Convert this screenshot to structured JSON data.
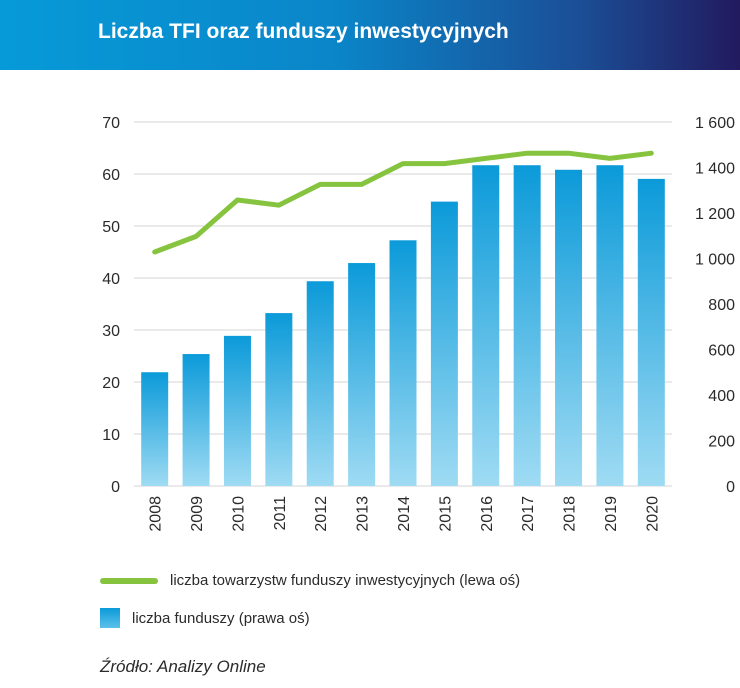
{
  "header": {
    "title": "Liczba TFI oraz funduszy inwestycyjnych"
  },
  "chart_data": {
    "type": "bar",
    "categories": [
      "2008",
      "2009",
      "2010",
      "2011",
      "2012",
      "2013",
      "2014",
      "2015",
      "2016",
      "2017",
      "2018",
      "2019",
      "2020"
    ],
    "series": [
      {
        "name": "liczba towarzystw funduszy inwestycyjnych (lewa oś)",
        "type": "line",
        "axis": "left",
        "values": [
          45,
          48,
          55,
          54,
          58,
          58,
          62,
          62,
          63,
          64,
          64,
          63,
          64
        ],
        "color": "#86c440"
      },
      {
        "name": "liczba funduszy (prawa oś)",
        "type": "bar",
        "axis": "right",
        "values": [
          500,
          580,
          660,
          760,
          900,
          980,
          1080,
          1250,
          1410,
          1410,
          1390,
          1410,
          1350
        ],
        "color": "#0b9ad9"
      }
    ],
    "y_left": {
      "range": [
        0,
        70
      ],
      "ticks": [
        "0",
        "10",
        "20",
        "30",
        "40",
        "50",
        "60",
        "70"
      ]
    },
    "y_right": {
      "range": [
        0,
        1600
      ],
      "ticks": [
        "0",
        "200",
        "400",
        "600",
        "800",
        "1 000",
        "1 200",
        "1 400",
        "1 600"
      ]
    },
    "grid": true,
    "legend_position": "bottom"
  },
  "source": "Źródło: Analizy Online"
}
